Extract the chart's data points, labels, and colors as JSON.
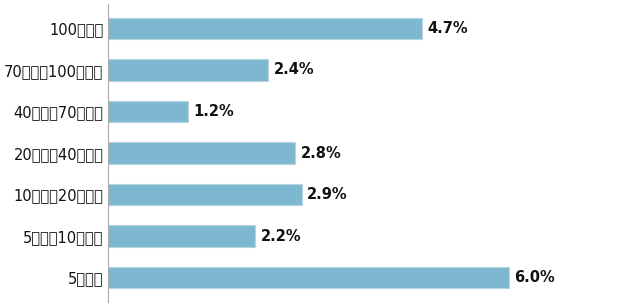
{
  "categories": [
    "100年以上",
    "70年以上100年未満",
    "40年以上70年未満",
    "20年以上40年未満",
    "10年以上20年未満",
    "5年以上10年未満",
    "5年未満"
  ],
  "values": [
    4.7,
    2.4,
    1.2,
    2.8,
    2.9,
    2.2,
    6.0
  ],
  "labels": [
    "4.7%",
    "2.4%",
    "1.2%",
    "2.8%",
    "2.9%",
    "2.2%",
    "6.0%"
  ],
  "bar_color": "#7EB8D0",
  "bar_edge_color": "#B8D4E0",
  "background_color": "#FFFFFF",
  "xlim": [
    0,
    7.8
  ],
  "label_fontsize": 10.5,
  "tick_fontsize": 10.5,
  "bar_height": 0.52
}
